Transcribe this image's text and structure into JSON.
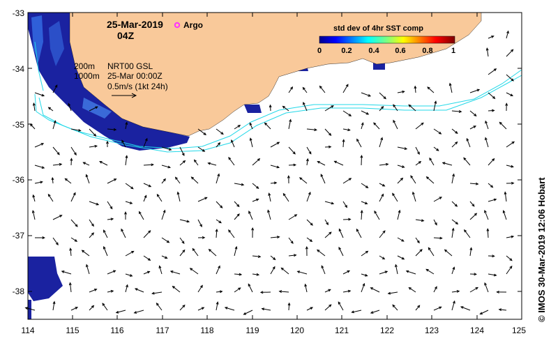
{
  "map": {
    "title_date": "25-Mar-2019",
    "title_time": "04Z",
    "argo_label": "Argo",
    "product": "NRT00 GSL",
    "product_date": "25-Mar 00:00Z",
    "scale_text": "0.5m/s (1kt 24h)",
    "isobath_200": "200m",
    "isobath_1000": "1000m",
    "credit": "© IMOS 30-Mar-2019 12:06 Hobart",
    "x_ticks": [
      "114",
      "115",
      "116",
      "117",
      "118",
      "119",
      "120",
      "121",
      "122",
      "123",
      "124",
      "125"
    ],
    "y_ticks": [
      "-33",
      "-34",
      "-35",
      "-36",
      "-37",
      "-38"
    ],
    "colors": {
      "land": "#f9c99a",
      "isobath": "#22d8e8",
      "argo": "#ff33ff",
      "sst_dark": "#1a22a0"
    }
  },
  "colorbar": {
    "title": "std dev of 4hr SST comp",
    "ticks": [
      "0",
      "0.2",
      "0.4",
      "0.6",
      "0.8",
      "1"
    ]
  }
}
